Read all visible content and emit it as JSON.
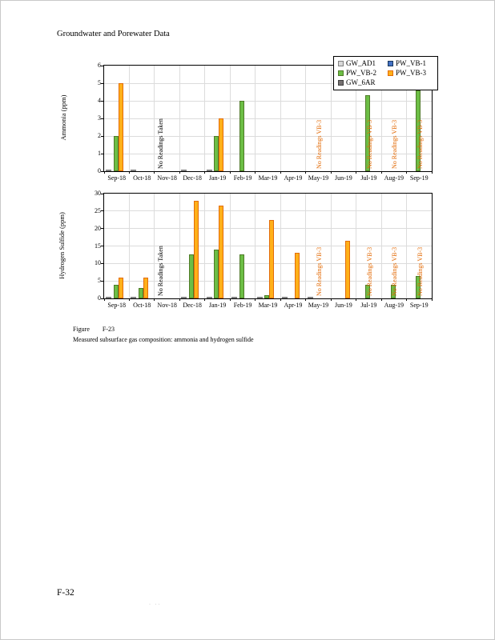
{
  "page": {
    "header": "Groundwater and Porewater Data",
    "page_number": "F-32",
    "artifact": "· ··"
  },
  "caption": {
    "label": "Figure",
    "number": "F-23",
    "text": "Measured subsurface gas composition: ammonia and hydrogen sulfide"
  },
  "legend": {
    "position": "top-right",
    "entries": [
      {
        "label": "GW_AD1",
        "color": "#d9d9d9",
        "border": "#808080"
      },
      {
        "label": "PW_VB-1",
        "color": "#4472c4",
        "border": "#17375e"
      },
      {
        "label": "PW_VB-2",
        "color": "#6cbe45",
        "border": "#4f7b28"
      },
      {
        "label": "PW_VB-3",
        "color": "#ffb019",
        "border": "#e36c09"
      },
      {
        "label": "GW_6AR",
        "color": "#767171",
        "border": "#3f3f3f"
      }
    ]
  },
  "note_colors": {
    "black": "#000000",
    "orange": "#e36c09"
  },
  "chart_data": [
    {
      "type": "bar",
      "title": "",
      "xlabel": "",
      "ylabel": "Ammonia (ppm)",
      "ylim": [
        0,
        6
      ],
      "ytick_step": 1,
      "grid": true,
      "legend_position": "top-right",
      "categories": [
        "Sep-18",
        "Oct-18",
        "Nov-18",
        "Dec-18",
        "Jan-19",
        "Feb-19",
        "Mar-19",
        "Apr-19",
        "May-19",
        "Jun-19",
        "Jul-19",
        "Aug-19",
        "Sep-19"
      ],
      "series": [
        {
          "name": "GW_AD1",
          "values": [
            0,
            0,
            null,
            0,
            0,
            null,
            null,
            null,
            null,
            null,
            null,
            null,
            null
          ]
        },
        {
          "name": "PW_VB-1",
          "values": [
            null,
            null,
            null,
            null,
            null,
            null,
            null,
            null,
            null,
            null,
            null,
            null,
            null
          ]
        },
        {
          "name": "PW_VB-2",
          "values": [
            2,
            null,
            null,
            null,
            2,
            4,
            null,
            null,
            null,
            null,
            4.3,
            null,
            4.6
          ]
        },
        {
          "name": "PW_VB-3",
          "values": [
            5,
            null,
            null,
            null,
            3,
            null,
            null,
            null,
            null,
            null,
            null,
            null,
            null
          ]
        },
        {
          "name": "GW_6AR",
          "values": [
            null,
            null,
            null,
            null,
            null,
            null,
            null,
            null,
            null,
            null,
            null,
            null,
            null
          ]
        }
      ],
      "annotations": [
        {
          "category": "Nov-18",
          "text": "No Readings Taken",
          "color": "#000000",
          "align": "center"
        },
        {
          "category": "May-19",
          "text": "No Readings VB-3",
          "color": "#e36c09",
          "align": "right"
        },
        {
          "category": "Jul-19",
          "text": "No Readings VB-3",
          "color": "#e36c09",
          "align": "right"
        },
        {
          "category": "Aug-19",
          "text": "No Readings VB-3",
          "color": "#e36c09",
          "align": "right"
        },
        {
          "category": "Sep-19",
          "text": "No Readings VB-3",
          "color": "#e36c09",
          "align": "right"
        }
      ]
    },
    {
      "type": "bar",
      "title": "",
      "xlabel": "",
      "ylabel": "Hydrogen Sulfide (ppm)",
      "ylim": [
        0,
        30
      ],
      "ytick_step": 5,
      "grid": true,
      "legend_position": "none",
      "categories": [
        "Sep-18",
        "Oct-18",
        "Nov-18",
        "Dec-18",
        "Jan-19",
        "Feb-19",
        "Mar-19",
        "Apr-19",
        "May-19",
        "Jun-19",
        "Jul-19",
        "Aug-19",
        "Sep-19"
      ],
      "series": [
        {
          "name": "GW_AD1",
          "values": [
            0,
            0,
            null,
            0,
            0,
            0,
            0,
            0,
            0,
            null,
            null,
            null,
            null
          ]
        },
        {
          "name": "PW_VB-1",
          "values": [
            null,
            null,
            null,
            null,
            null,
            null,
            null,
            null,
            null,
            null,
            null,
            null,
            null
          ]
        },
        {
          "name": "PW_VB-2",
          "values": [
            4,
            3,
            null,
            12.5,
            14,
            12.5,
            1,
            null,
            null,
            null,
            4,
            4,
            6.5
          ]
        },
        {
          "name": "PW_VB-3",
          "values": [
            6,
            6,
            null,
            28,
            26.5,
            null,
            22.5,
            13,
            null,
            16.5,
            null,
            null,
            null
          ]
        },
        {
          "name": "GW_6AR",
          "values": [
            null,
            null,
            null,
            null,
            null,
            null,
            null,
            null,
            null,
            null,
            null,
            null,
            null
          ]
        }
      ],
      "annotations": [
        {
          "category": "Nov-18",
          "text": "No Readings Taken",
          "color": "#000000",
          "align": "center"
        },
        {
          "category": "May-19",
          "text": "No Readings VB-3",
          "color": "#e36c09",
          "align": "right"
        },
        {
          "category": "Jul-19",
          "text": "No Readings VB-3",
          "color": "#e36c09",
          "align": "right"
        },
        {
          "category": "Aug-19",
          "text": "No Readings VB-3",
          "color": "#e36c09",
          "align": "right"
        },
        {
          "category": "Sep-19",
          "text": "No Readings VB-3",
          "color": "#e36c09",
          "align": "right"
        }
      ]
    }
  ]
}
